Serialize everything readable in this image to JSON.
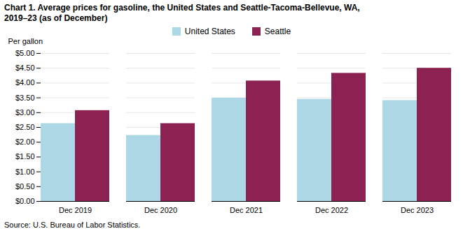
{
  "chart_data": {
    "type": "bar",
    "title": "Chart 1. Average prices for gasoline, the United States and Seattle-Tacoma-Bellevue, WA,\n2019–23 (as of December)",
    "y_label": "Per gallon",
    "source": "Source: U.S. Bureau of Labor Statistics.",
    "categories": [
      "Dec 2019",
      "Dec 2020",
      "Dec 2021",
      "Dec 2022",
      "Dec 2023"
    ],
    "series": [
      {
        "name": "United States",
        "color": "#add8e6",
        "values": [
          2.63,
          2.23,
          3.49,
          3.45,
          3.41
        ]
      },
      {
        "name": "Seattle",
        "color": "#8b2252",
        "values": [
          3.07,
          2.63,
          4.07,
          4.33,
          4.5
        ]
      }
    ],
    "ylim": [
      0,
      5.0
    ],
    "yticks": [
      {
        "value": 0.0,
        "label": "$0.00"
      },
      {
        "value": 0.5,
        "label": "$0.50"
      },
      {
        "value": 1.0,
        "label": "$1.00"
      },
      {
        "value": 1.5,
        "label": "$1.50"
      },
      {
        "value": 2.0,
        "label": "$2.00"
      },
      {
        "value": 2.5,
        "label": "$2.50"
      },
      {
        "value": 3.0,
        "label": "$3.00"
      },
      {
        "value": 3.5,
        "label": "$3.50"
      },
      {
        "value": 4.0,
        "label": "$4.00"
      },
      {
        "value": 4.5,
        "label": "$4.50"
      },
      {
        "value": 5.0,
        "label": "$5.00"
      }
    ],
    "grid": true,
    "legend": "top"
  }
}
